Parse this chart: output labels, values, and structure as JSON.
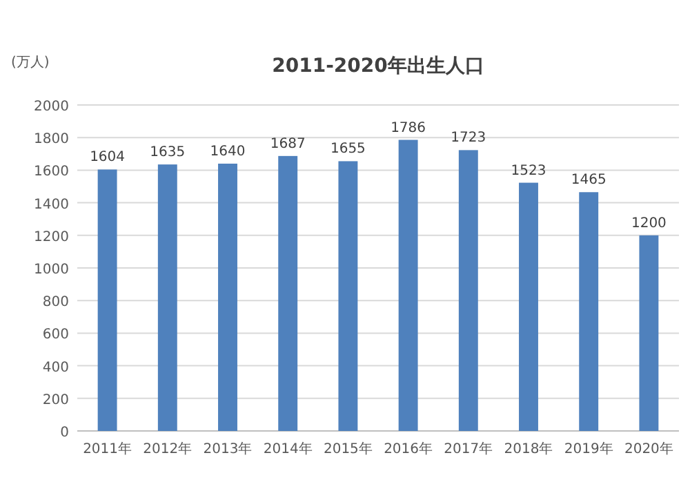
{
  "chart_data": {
    "type": "bar",
    "title": "2011-2020年出生人口",
    "ylabel": "(万人)",
    "categories": [
      "2011年",
      "2012年",
      "2013年",
      "2014年",
      "2015年",
      "2016年",
      "2017年",
      "2018年",
      "2019年",
      "2020年"
    ],
    "values": [
      1604,
      1635,
      1640,
      1687,
      1655,
      1786,
      1723,
      1523,
      1465,
      1200
    ],
    "color": "#4f81bd",
    "ylim": [
      0,
      2000
    ],
    "yticks": [
      0,
      200,
      400,
      600,
      800,
      1000,
      1200,
      1400,
      1600,
      1800,
      2000
    ],
    "grid": "y",
    "data_labels": true
  }
}
